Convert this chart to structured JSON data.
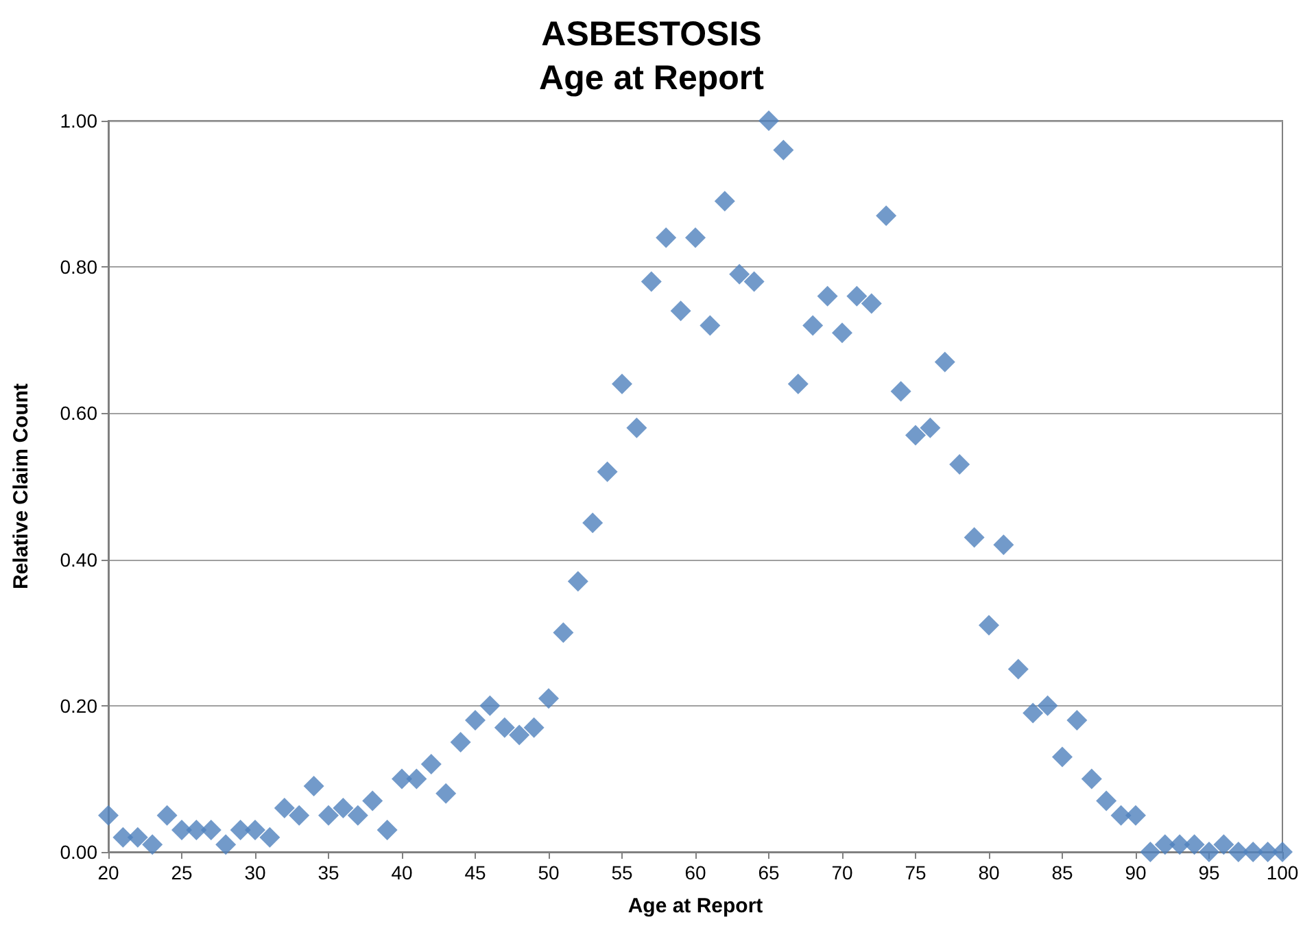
{
  "chart_data": {
    "type": "scatter",
    "title": "ASBESTOSIS\nAge at Report",
    "xlabel": "Age at Report",
    "ylabel": "Relative Claim Count",
    "x": [
      20,
      21,
      22,
      23,
      24,
      25,
      26,
      27,
      28,
      29,
      30,
      31,
      32,
      33,
      34,
      35,
      36,
      37,
      38,
      39,
      40,
      41,
      42,
      43,
      44,
      45,
      46,
      47,
      48,
      49,
      50,
      51,
      52,
      53,
      54,
      55,
      56,
      57,
      58,
      59,
      60,
      61,
      62,
      63,
      64,
      65,
      66,
      67,
      68,
      69,
      70,
      71,
      72,
      73,
      74,
      75,
      76,
      77,
      78,
      79,
      80,
      81,
      82,
      83,
      84,
      85,
      86,
      87,
      88,
      89,
      90,
      91,
      92,
      93,
      94,
      95,
      96,
      97,
      98,
      99,
      100
    ],
    "series": [
      {
        "color": "#4f81bd",
        "values": [
          0.05,
          0.02,
          0.02,
          0.01,
          0.05,
          0.03,
          0.03,
          0.03,
          0.01,
          0.03,
          0.03,
          0.02,
          0.06,
          0.05,
          0.09,
          0.05,
          0.06,
          0.05,
          0.07,
          0.03,
          0.1,
          0.1,
          0.12,
          0.08,
          0.15,
          0.18,
          0.2,
          0.17,
          0.16,
          0.17,
          0.21,
          0.3,
          0.37,
          0.45,
          0.52,
          0.64,
          0.58,
          0.78,
          0.84,
          0.74,
          0.84,
          0.72,
          0.89,
          0.79,
          0.78,
          1.0,
          0.96,
          0.64,
          0.72,
          0.76,
          0.71,
          0.76,
          0.75,
          0.87,
          0.63,
          0.57,
          0.58,
          0.67,
          0.53,
          0.43,
          0.31,
          0.42,
          0.25,
          0.19,
          0.2,
          0.13,
          0.18,
          0.1,
          0.07,
          0.05,
          0.05,
          0.0,
          0.01,
          0.01,
          0.01,
          0.0,
          0.01,
          0.0,
          0.0,
          0.0,
          0.0
        ]
      }
    ],
    "xlim": [
      20,
      100
    ],
    "xticks": [
      20,
      25,
      30,
      35,
      40,
      45,
      50,
      55,
      60,
      65,
      70,
      75,
      80,
      85,
      90,
      95,
      100
    ],
    "ylim": [
      0,
      1
    ],
    "yticks": [
      {
        "value": 0,
        "label": "0.00"
      },
      {
        "value": 0.2,
        "label": "0.20"
      },
      {
        "value": 0.4,
        "label": "0.40"
      },
      {
        "value": 0.6,
        "label": "0.60"
      },
      {
        "value": 0.8,
        "label": "0.80"
      },
      {
        "value": 1,
        "label": "1.00"
      }
    ],
    "grid": "y",
    "marker": "diamond"
  }
}
